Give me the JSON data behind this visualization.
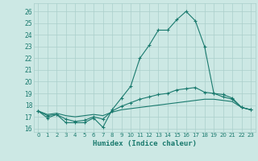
{
  "xlabel": "Humidex (Indice chaleur)",
  "x": [
    0,
    1,
    2,
    3,
    4,
    5,
    6,
    7,
    8,
    9,
    10,
    11,
    12,
    13,
    14,
    15,
    16,
    17,
    18,
    19,
    20,
    21,
    22,
    23
  ],
  "line1": [
    17.5,
    16.9,
    17.2,
    16.5,
    16.5,
    16.5,
    16.9,
    16.1,
    17.6,
    18.6,
    19.6,
    22.0,
    23.1,
    24.4,
    24.4,
    25.3,
    26.0,
    25.2,
    23.0,
    19.0,
    18.7,
    18.5,
    17.8,
    17.6
  ],
  "line2": [
    17.5,
    17.1,
    17.2,
    16.8,
    16.6,
    16.7,
    17.0,
    16.8,
    17.5,
    17.9,
    18.2,
    18.5,
    18.7,
    18.9,
    19.0,
    19.3,
    19.4,
    19.5,
    19.1,
    19.0,
    18.9,
    18.6,
    17.8,
    17.6
  ],
  "line3": [
    17.5,
    17.2,
    17.3,
    17.1,
    17.0,
    17.1,
    17.2,
    17.1,
    17.4,
    17.6,
    17.7,
    17.8,
    17.9,
    18.0,
    18.1,
    18.2,
    18.3,
    18.4,
    18.5,
    18.5,
    18.4,
    18.3,
    17.8,
    17.6
  ],
  "color": "#1a7a6e",
  "bg_color": "#cce8e4",
  "grid_color": "#aacfcb",
  "ylim": [
    15.7,
    26.7
  ],
  "yticks": [
    16,
    17,
    18,
    19,
    20,
    21,
    22,
    23,
    24,
    25,
    26
  ],
  "xticks": [
    0,
    1,
    2,
    3,
    4,
    5,
    6,
    7,
    8,
    9,
    10,
    11,
    12,
    13,
    14,
    15,
    16,
    17,
    18,
    19,
    20,
    21,
    22,
    23
  ]
}
